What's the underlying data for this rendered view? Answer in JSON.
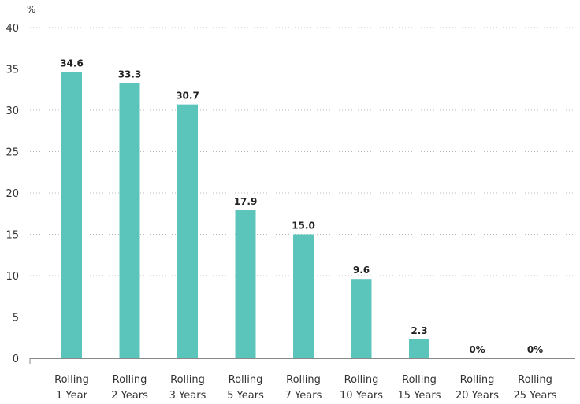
{
  "chart_data": {
    "type": "bar",
    "y_unit_label": "%",
    "categories": [
      [
        "Rolling",
        "1 Year"
      ],
      [
        "Rolling",
        "2 Years"
      ],
      [
        "Rolling",
        "3 Years"
      ],
      [
        "Rolling",
        "5 Years"
      ],
      [
        "Rolling",
        "7 Years"
      ],
      [
        "Rolling",
        "10 Years"
      ],
      [
        "Rolling",
        "15 Years"
      ],
      [
        "Rolling",
        "20 Years"
      ],
      [
        "Rolling",
        "25 Years"
      ]
    ],
    "values": [
      34.6,
      33.3,
      30.7,
      17.9,
      15.0,
      9.6,
      2.3,
      0,
      0
    ],
    "data_labels": [
      "34.6",
      "33.3",
      "30.7",
      "17.9",
      "15.0",
      "9.6",
      "2.3",
      "0%",
      "0%"
    ],
    "ylim": [
      0,
      40
    ],
    "yticks": [
      "0",
      "5",
      "10",
      "15",
      "20",
      "25",
      "30",
      "35",
      "40"
    ],
    "grid": true,
    "legend": "none",
    "bar_color": "#5bc4bb"
  }
}
